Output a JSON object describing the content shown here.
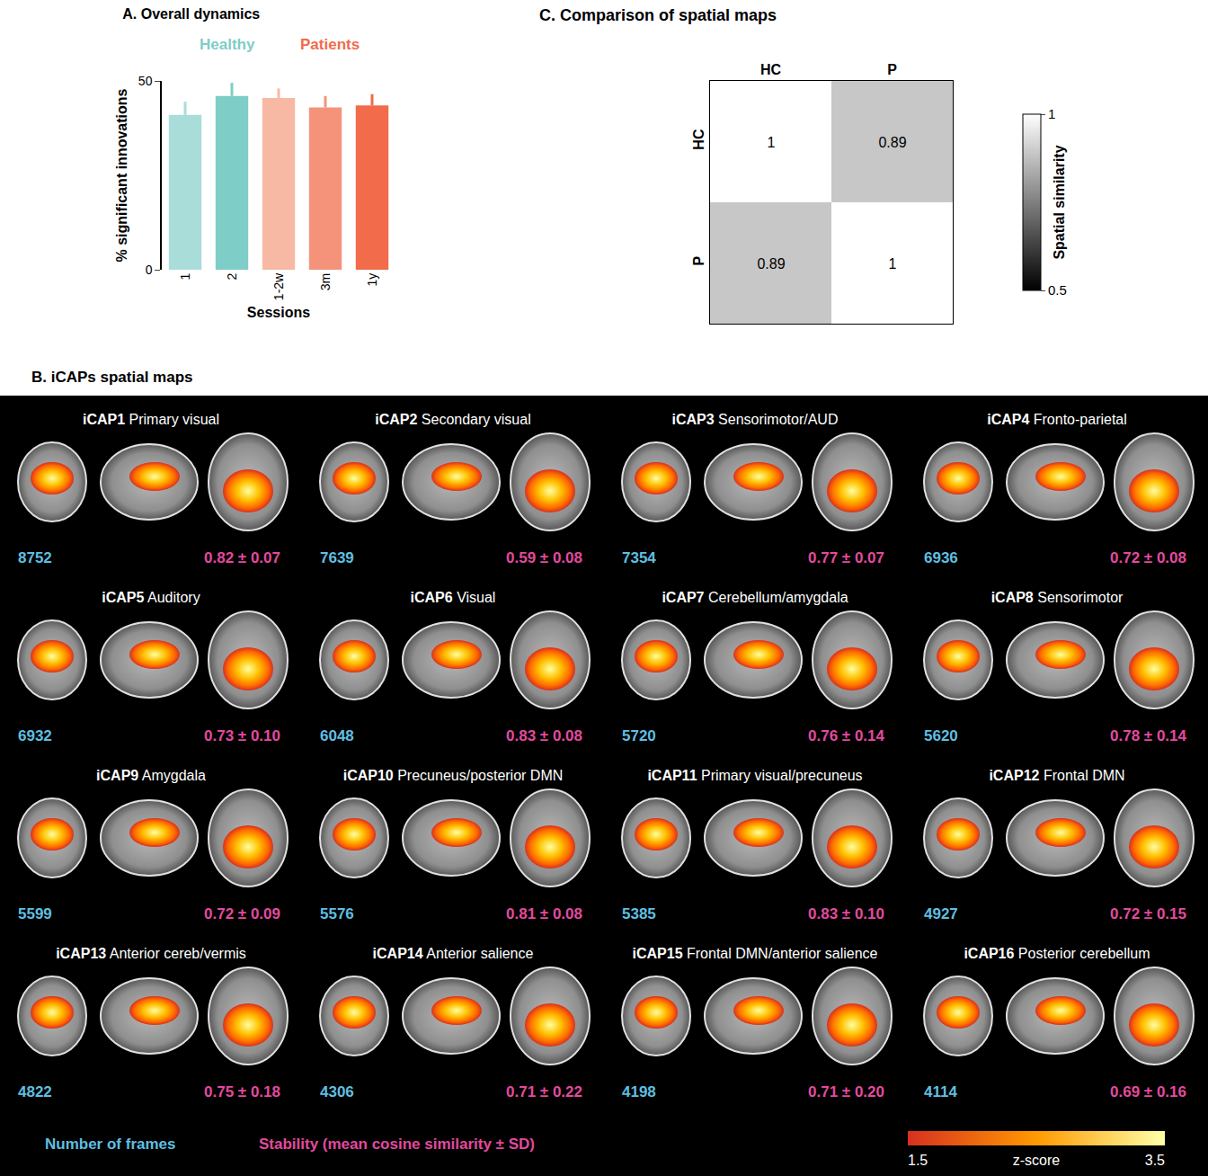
{
  "chart_data": [
    {
      "type": "bar",
      "title": "A. Overall dynamics",
      "xlabel": "Sessions",
      "ylabel": "% significant innovations",
      "categories": [
        "1",
        "2",
        "1-2w",
        "3m",
        "1y"
      ],
      "ylim": [
        0,
        50
      ],
      "yticks": [
        0,
        50
      ],
      "grid": false,
      "series": [
        {
          "name": "Healthy",
          "color": "#7fcdc7",
          "values": [
            41,
            46,
            null,
            null,
            null
          ],
          "errors": [
            3.5,
            3.5,
            null,
            null,
            null
          ],
          "colors": [
            "#a9ddd9",
            "#7fcdc7",
            null,
            null,
            null
          ]
        },
        {
          "name": "Patients",
          "color": "#f26b4b",
          "values": [
            null,
            null,
            45.5,
            43,
            43.5
          ],
          "errors": [
            null,
            null,
            2.5,
            3,
            3
          ],
          "colors": [
            null,
            null,
            "#f7b9a3",
            "#f4937a",
            "#f26b4b"
          ]
        }
      ]
    },
    {
      "type": "heatmap",
      "title": "C. Comparison of spatial maps",
      "x": [
        "HC",
        "P"
      ],
      "y": [
        "HC",
        "P"
      ],
      "values": [
        [
          1,
          0.89
        ],
        [
          0.89,
          1
        ]
      ],
      "data_labels": true,
      "colorbar": {
        "title": "Spatial similarity",
        "range": [
          0.5,
          1
        ],
        "ticks": [
          0.5,
          1
        ]
      }
    }
  ],
  "panel_b": {
    "title": "B. iCAPs spatial maps",
    "maps": [
      {
        "id": "iCAP1",
        "label": "Primary visual",
        "frames": 8752,
        "stability": "0.82 ± 0.07"
      },
      {
        "id": "iCAP2",
        "label": "Secondary visual",
        "frames": 7639,
        "stability": "0.59 ± 0.08"
      },
      {
        "id": "iCAP3",
        "label": "Sensorimotor/AUD",
        "frames": 7354,
        "stability": "0.77 ± 0.07"
      },
      {
        "id": "iCAP4",
        "label": "Fronto-parietal",
        "frames": 6936,
        "stability": "0.72 ± 0.08"
      },
      {
        "id": "iCAP5",
        "label": "Auditory",
        "frames": 6932,
        "stability": "0.73 ± 0.10"
      },
      {
        "id": "iCAP6",
        "label": "Visual",
        "frames": 6048,
        "stability": "0.83 ± 0.08"
      },
      {
        "id": "iCAP7",
        "label": "Cerebellum/amygdala",
        "frames": 5720,
        "stability": "0.76 ± 0.14"
      },
      {
        "id": "iCAP8",
        "label": "Sensorimotor",
        "frames": 5620,
        "stability": "0.78 ± 0.14"
      },
      {
        "id": "iCAP9",
        "label": "Amygdala",
        "frames": 5599,
        "stability": "0.72 ± 0.09"
      },
      {
        "id": "iCAP10",
        "label": "Precuneus/posterior DMN",
        "frames": 5576,
        "stability": "0.81 ± 0.08"
      },
      {
        "id": "iCAP11",
        "label": "Primary visual/precuneus",
        "frames": 5385,
        "stability": "0.83 ± 0.10"
      },
      {
        "id": "iCAP12",
        "label": "Frontal DMN",
        "frames": 4927,
        "stability": "0.72 ± 0.15"
      },
      {
        "id": "iCAP13",
        "label": "Anterior cereb/vermis",
        "frames": 4822,
        "stability": "0.75 ± 0.18"
      },
      {
        "id": "iCAP14",
        "label": "Anterior salience",
        "frames": 4306,
        "stability": "0.71 ± 0.22"
      },
      {
        "id": "iCAP15",
        "label": "Frontal DMN/anterior salience",
        "frames": 4198,
        "stability": "0.71 ± 0.20"
      },
      {
        "id": "iCAP16",
        "label": "Posterior cerebellum",
        "frames": 4114,
        "stability": "0.69 ± 0.16"
      }
    ],
    "legend": {
      "frames": "Number of frames",
      "stability": "Stability (mean cosine similarity ± SD)"
    },
    "colorbar": {
      "title": "z-score",
      "range": [
        1.5,
        3.5
      ],
      "ticks": [
        1.5,
        3.5
      ]
    }
  }
}
